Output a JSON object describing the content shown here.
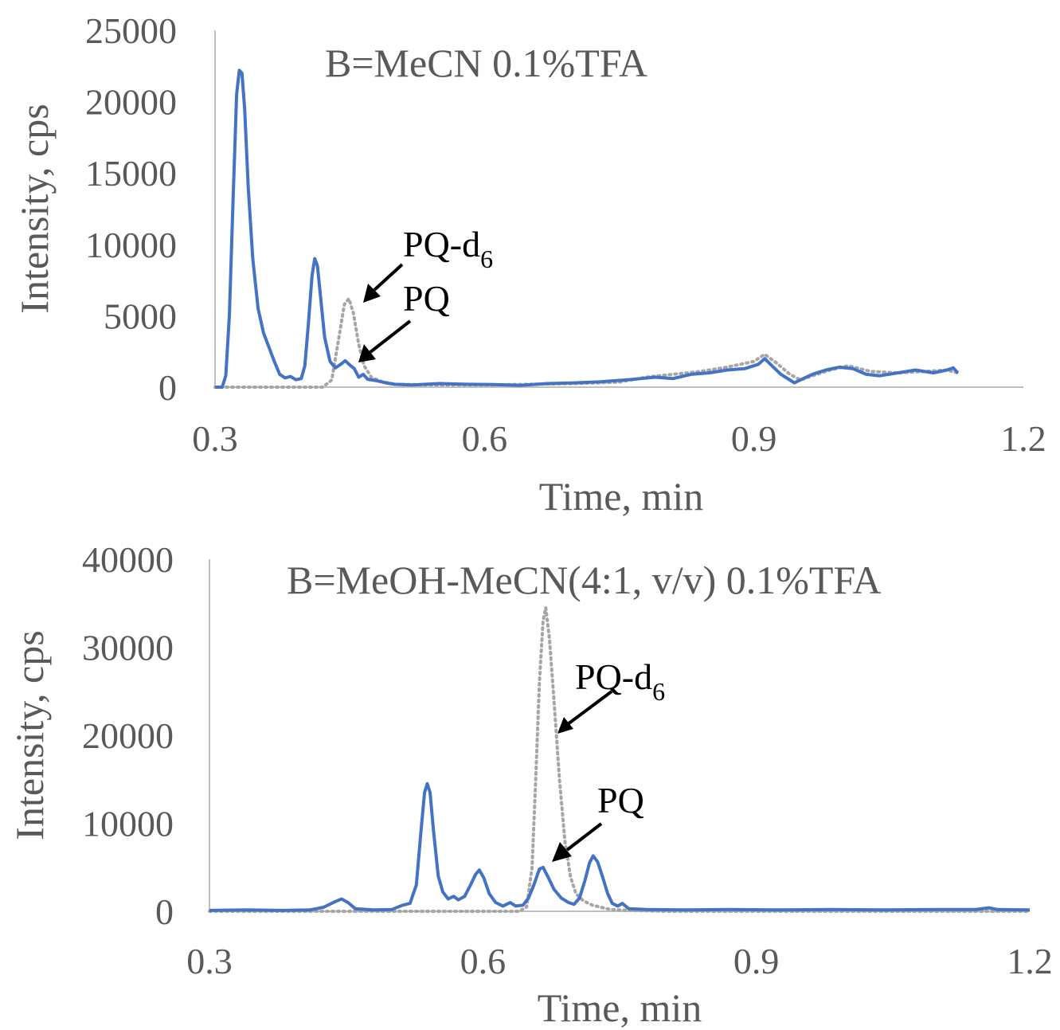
{
  "chart_data": [
    {
      "type": "line",
      "title": "B=MeCN 0.1%TFA",
      "xlabel": "Time, min",
      "ylabel": "Intensity, cps",
      "xlim": [
        0.3,
        1.2
      ],
      "ylim": [
        0,
        25000
      ],
      "x_ticks": [
        "0.3",
        "0.6",
        "0.9",
        "1.2"
      ],
      "y_ticks": [
        "0",
        "5000",
        "10000",
        "15000",
        "20000",
        "25000"
      ],
      "grid": false,
      "legend": "none",
      "series": [
        {
          "color": "#4472c4",
          "style": "solid",
          "points": [
            [
              0.3,
              0
            ],
            [
              0.308,
              0
            ],
            [
              0.312,
              800
            ],
            [
              0.316,
              5000
            ],
            [
              0.32,
              13000
            ],
            [
              0.324,
              20500
            ],
            [
              0.327,
              22200
            ],
            [
              0.33,
              22000
            ],
            [
              0.333,
              19500
            ],
            [
              0.337,
              14000
            ],
            [
              0.342,
              9000
            ],
            [
              0.348,
              5500
            ],
            [
              0.354,
              3800
            ],
            [
              0.36,
              2800
            ],
            [
              0.366,
              1800
            ],
            [
              0.372,
              900
            ],
            [
              0.378,
              650
            ],
            [
              0.384,
              750
            ],
            [
              0.39,
              520
            ],
            [
              0.396,
              600
            ],
            [
              0.4,
              1500
            ],
            [
              0.404,
              4500
            ],
            [
              0.408,
              7800
            ],
            [
              0.411,
              9000
            ],
            [
              0.414,
              8500
            ],
            [
              0.418,
              6000
            ],
            [
              0.422,
              3500
            ],
            [
              0.428,
              1800
            ],
            [
              0.434,
              1350
            ],
            [
              0.44,
              1600
            ],
            [
              0.445,
              1850
            ],
            [
              0.45,
              1550
            ],
            [
              0.455,
              1300
            ],
            [
              0.46,
              700
            ],
            [
              0.465,
              900
            ],
            [
              0.47,
              550
            ],
            [
              0.48,
              450
            ],
            [
              0.49,
              300
            ],
            [
              0.5,
              200
            ],
            [
              0.52,
              150
            ],
            [
              0.55,
              250
            ],
            [
              0.58,
              200
            ],
            [
              0.61,
              180
            ],
            [
              0.64,
              120
            ],
            [
              0.67,
              250
            ],
            [
              0.7,
              300
            ],
            [
              0.73,
              380
            ],
            [
              0.76,
              520
            ],
            [
              0.79,
              700
            ],
            [
              0.81,
              600
            ],
            [
              0.83,
              900
            ],
            [
              0.85,
              1000
            ],
            [
              0.87,
              1200
            ],
            [
              0.89,
              1300
            ],
            [
              0.905,
              1600
            ],
            [
              0.912,
              2000
            ],
            [
              0.92,
              1500
            ],
            [
              0.93,
              900
            ],
            [
              0.94,
              500
            ],
            [
              0.945,
              300
            ],
            [
              0.955,
              600
            ],
            [
              0.965,
              900
            ],
            [
              0.98,
              1200
            ],
            [
              0.995,
              1400
            ],
            [
              1.01,
              1300
            ],
            [
              1.025,
              900
            ],
            [
              1.04,
              800
            ],
            [
              1.06,
              1000
            ],
            [
              1.08,
              1200
            ],
            [
              1.1,
              1000
            ],
            [
              1.115,
              1200
            ],
            [
              1.122,
              1350
            ],
            [
              1.127,
              1000
            ]
          ]
        },
        {
          "color": "#a6a6a6",
          "style": "dotted",
          "points": [
            [
              0.3,
              0
            ],
            [
              0.42,
              0
            ],
            [
              0.43,
              500
            ],
            [
              0.438,
              3500
            ],
            [
              0.444,
              5800
            ],
            [
              0.449,
              6200
            ],
            [
              0.454,
              5200
            ],
            [
              0.46,
              3000
            ],
            [
              0.466,
              1500
            ],
            [
              0.474,
              700
            ],
            [
              0.485,
              400
            ],
            [
              0.5,
              200
            ],
            [
              0.55,
              150
            ],
            [
              0.6,
              150
            ],
            [
              0.65,
              200
            ],
            [
              0.7,
              250
            ],
            [
              0.75,
              350
            ],
            [
              0.78,
              700
            ],
            [
              0.81,
              900
            ],
            [
              0.84,
              1100
            ],
            [
              0.87,
              1400
            ],
            [
              0.9,
              1800
            ],
            [
              0.912,
              2300
            ],
            [
              0.925,
              1700
            ],
            [
              0.94,
              900
            ],
            [
              0.952,
              500
            ],
            [
              0.965,
              800
            ],
            [
              0.985,
              1200
            ],
            [
              1.005,
              1500
            ],
            [
              1.03,
              1100
            ],
            [
              1.06,
              1000
            ],
            [
              1.09,
              1100
            ],
            [
              1.115,
              1200
            ],
            [
              1.127,
              1000
            ]
          ]
        }
      ],
      "annotations": [
        {
          "label": "PQ-d",
          "subscript": "6"
        },
        {
          "label": "PQ",
          "subscript": ""
        }
      ]
    },
    {
      "type": "line",
      "title": "B=MeOH-MeCN(4:1,  v/v) 0.1%TFA",
      "xlabel": "Time, min",
      "ylabel": "Intensity, cps",
      "xlim": [
        0.3,
        1.2
      ],
      "ylim": [
        0,
        40000
      ],
      "x_ticks": [
        "0.3",
        "0.6",
        "0.9",
        "1.2"
      ],
      "y_ticks": [
        "0",
        "10000",
        "20000",
        "30000",
        "40000"
      ],
      "grid": false,
      "legend": "none",
      "series": [
        {
          "color": "#4472c4",
          "style": "solid",
          "points": [
            [
              0.3,
              100
            ],
            [
              0.34,
              150
            ],
            [
              0.38,
              100
            ],
            [
              0.41,
              150
            ],
            [
              0.425,
              450
            ],
            [
              0.438,
              1100
            ],
            [
              0.445,
              1400
            ],
            [
              0.452,
              1000
            ],
            [
              0.46,
              300
            ],
            [
              0.48,
              150
            ],
            [
              0.5,
              200
            ],
            [
              0.512,
              700
            ],
            [
              0.52,
              900
            ],
            [
              0.527,
              3000
            ],
            [
              0.532,
              9000
            ],
            [
              0.536,
              13500
            ],
            [
              0.539,
              14500
            ],
            [
              0.542,
              13500
            ],
            [
              0.546,
              9000
            ],
            [
              0.551,
              4000
            ],
            [
              0.556,
              2200
            ],
            [
              0.562,
              1400
            ],
            [
              0.568,
              1700
            ],
            [
              0.573,
              1300
            ],
            [
              0.58,
              1700
            ],
            [
              0.586,
              2900
            ],
            [
              0.592,
              4200
            ],
            [
              0.596,
              4700
            ],
            [
              0.601,
              3800
            ],
            [
              0.607,
              2000
            ],
            [
              0.614,
              1000
            ],
            [
              0.622,
              600
            ],
            [
              0.63,
              1000
            ],
            [
              0.636,
              600
            ],
            [
              0.644,
              700
            ],
            [
              0.65,
              1500
            ],
            [
              0.656,
              3000
            ],
            [
              0.662,
              4800
            ],
            [
              0.666,
              5000
            ],
            [
              0.671,
              4000
            ],
            [
              0.678,
              2500
            ],
            [
              0.686,
              1500
            ],
            [
              0.694,
              1000
            ],
            [
              0.7,
              800
            ],
            [
              0.706,
              1500
            ],
            [
              0.712,
              3500
            ],
            [
              0.717,
              5500
            ],
            [
              0.721,
              6300
            ],
            [
              0.726,
              5600
            ],
            [
              0.731,
              4000
            ],
            [
              0.737,
              2000
            ],
            [
              0.742,
              900
            ],
            [
              0.748,
              600
            ],
            [
              0.753,
              900
            ],
            [
              0.76,
              300
            ],
            [
              0.78,
              200
            ],
            [
              0.82,
              150
            ],
            [
              0.87,
              200
            ],
            [
              0.92,
              150
            ],
            [
              0.98,
              200
            ],
            [
              1.04,
              150
            ],
            [
              1.1,
              200
            ],
            [
              1.14,
              200
            ],
            [
              1.155,
              400
            ],
            [
              1.165,
              200
            ],
            [
              1.2,
              150
            ]
          ]
        },
        {
          "color": "#a6a6a6",
          "style": "dotted",
          "points": [
            [
              0.3,
              0
            ],
            [
              0.64,
              0
            ],
            [
              0.648,
              500
            ],
            [
              0.654,
              5000
            ],
            [
              0.658,
              15000
            ],
            [
              0.662,
              26000
            ],
            [
              0.666,
              33000
            ],
            [
              0.669,
              34500
            ],
            [
              0.673,
              31000
            ],
            [
              0.678,
              24000
            ],
            [
              0.684,
              15000
            ],
            [
              0.69,
              8000
            ],
            [
              0.696,
              4000
            ],
            [
              0.702,
              2000
            ],
            [
              0.71,
              1200
            ],
            [
              0.72,
              700
            ],
            [
              0.74,
              200
            ],
            [
              0.76,
              100
            ],
            [
              0.8,
              0
            ],
            [
              1.2,
              0
            ]
          ]
        }
      ],
      "annotations": [
        {
          "label": "PQ-d",
          "subscript": "6"
        },
        {
          "label": "PQ",
          "subscript": ""
        }
      ]
    }
  ]
}
